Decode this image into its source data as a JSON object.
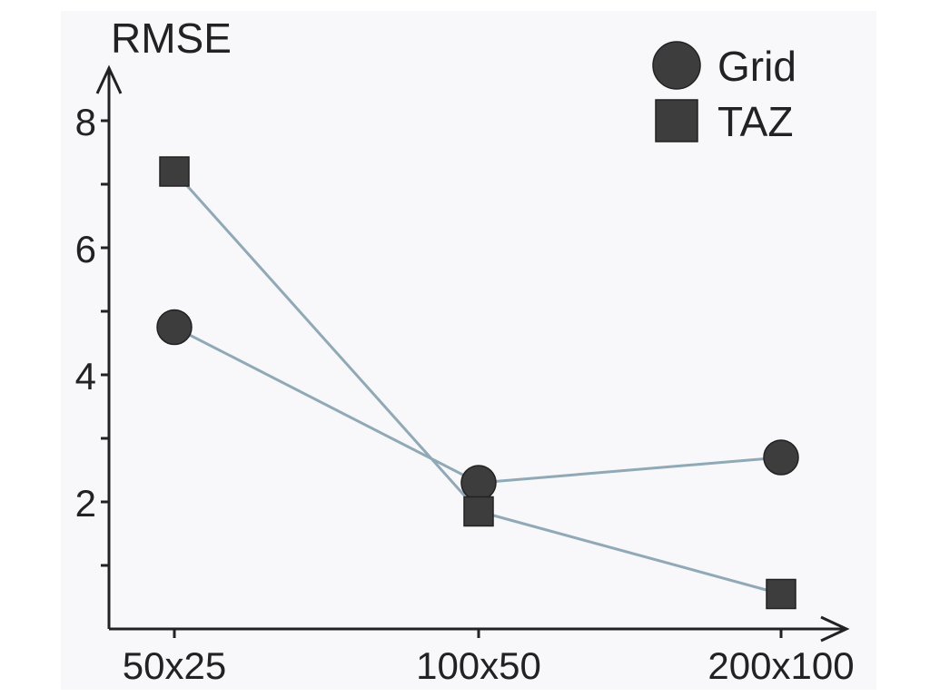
{
  "chart_data": {
    "type": "line",
    "ylabel": "RMSE",
    "xlabel": "",
    "categories": [
      "50x25",
      "100x50",
      "200x100"
    ],
    "ylim": [
      0,
      8.4
    ],
    "yticks_major": [
      2,
      4,
      6,
      8
    ],
    "yticks_minor": [
      1,
      3,
      5,
      7
    ],
    "series": [
      {
        "name": "Grid",
        "marker": "circle",
        "values": [
          4.75,
          2.3,
          2.7
        ]
      },
      {
        "name": "TAZ",
        "marker": "square",
        "values": [
          7.2,
          1.85,
          0.55
        ]
      }
    ],
    "legend_position": "top-right",
    "grid": false
  },
  "colors": {
    "line": "#8fa9b7",
    "marker": "#3d3d3d",
    "axis": "#222222",
    "panel": "#f8f7fa"
  }
}
